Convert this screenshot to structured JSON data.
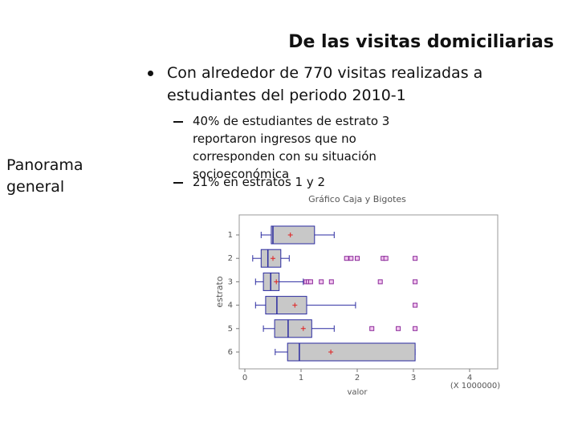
{
  "header": {
    "title": "De las visitas domiciliarias"
  },
  "side_label": "Panorama general",
  "bullets": [
    {
      "text": "Con alrededor de 770 visitas realizadas a estudiantes del periodo 2010-1",
      "sub": [
        "40% de estudiantes de estrato 3 reportaron ingresos que no corresponden con su situación socioeconómica",
        "21% en estratos 1 y 2"
      ]
    }
  ],
  "chart_data": {
    "type": "boxplot",
    "title": "Gráfico Caja y Bigotes",
    "orientation": "horizontal",
    "x_label": "valor",
    "y_label": "estrato",
    "x_multiplier": "(X 1000000)",
    "categories": [
      "1",
      "2",
      "3",
      "4",
      "5",
      "6"
    ],
    "xlim": [
      -0.1,
      4.5
    ],
    "xticks": [
      0,
      1,
      2,
      3,
      4
    ],
    "box_color": "#c8c8c8",
    "line_color": "#2a2aa0",
    "mean_color": "#e02020",
    "outlier_color": "#8a2a9a",
    "boxes": [
      {
        "whisker_low": 0.29,
        "q1": 0.47,
        "median": 0.5,
        "q3": 1.24,
        "whisker_high": 1.59,
        "mean": 0.81,
        "outliers": []
      },
      {
        "whisker_low": 0.14,
        "q1": 0.29,
        "median": 0.41,
        "q3": 0.64,
        "whisker_high": 0.79,
        "mean": 0.5,
        "outliers": [
          1.81,
          1.89,
          2.0,
          2.46,
          2.51,
          3.03
        ]
      },
      {
        "whisker_low": 0.19,
        "q1": 0.33,
        "median": 0.46,
        "q3": 0.61,
        "whisker_high": 1.04,
        "mean": 0.56,
        "outliers": [
          1.09,
          1.13,
          1.17,
          1.36,
          1.54,
          2.41,
          3.03
        ]
      },
      {
        "whisker_low": 0.19,
        "q1": 0.37,
        "median": 0.57,
        "q3": 1.1,
        "whisker_high": 1.97,
        "mean": 0.89,
        "outliers": [
          3.03
        ]
      },
      {
        "whisker_low": 0.33,
        "q1": 0.53,
        "median": 0.77,
        "q3": 1.19,
        "whisker_high": 1.59,
        "mean": 1.04,
        "outliers": [
          2.26,
          2.73,
          3.03
        ]
      },
      {
        "whisker_low": 0.54,
        "q1": 0.76,
        "median": 0.97,
        "q3": 3.03,
        "whisker_high": 3.03,
        "mean": 1.53,
        "outliers": []
      }
    ]
  }
}
